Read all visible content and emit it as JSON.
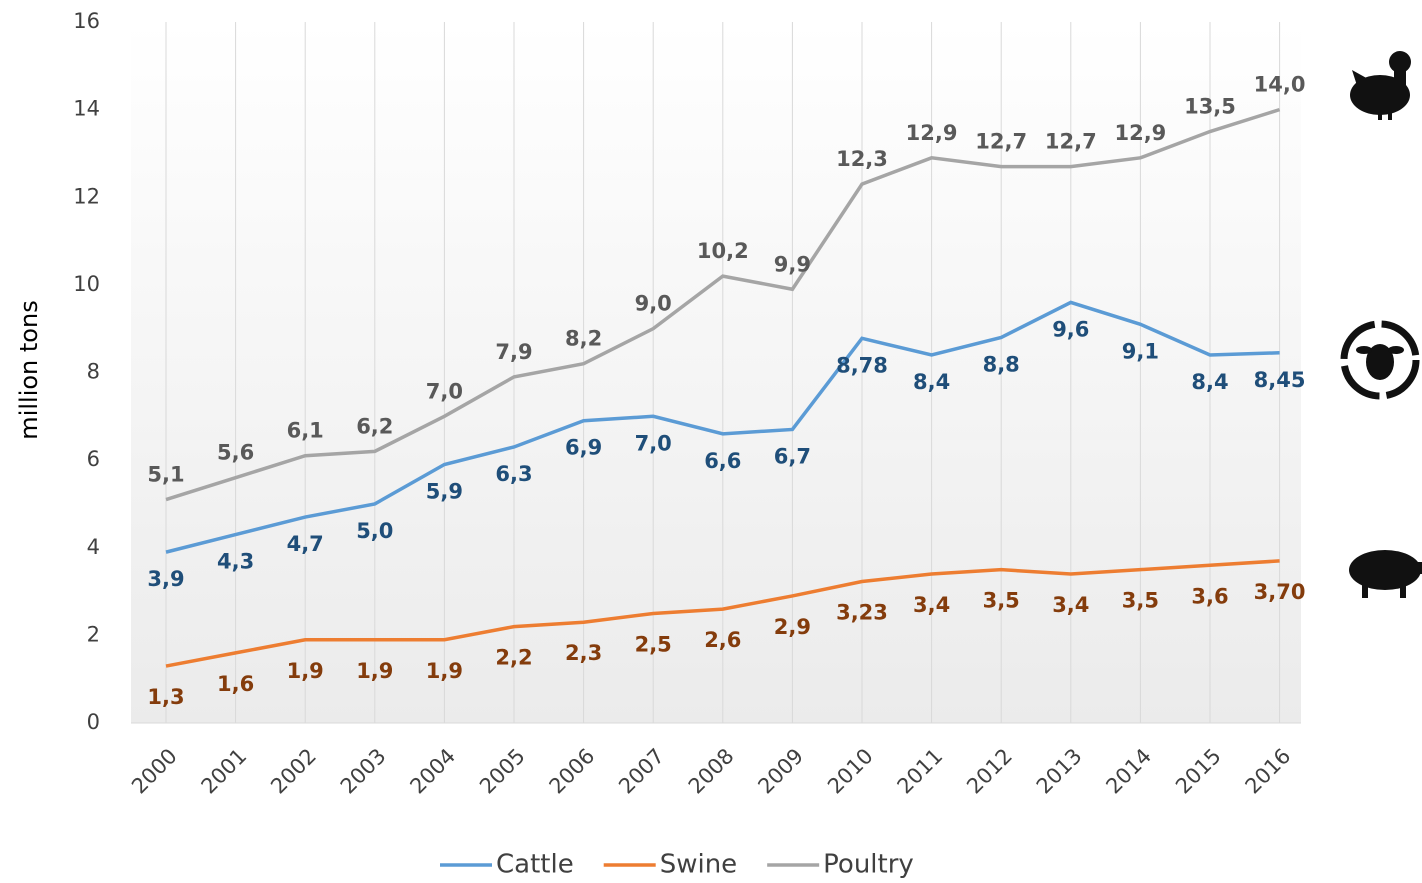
{
  "chart_data": {
    "type": "line",
    "y_label": "million tons",
    "categories": [
      "2000",
      "2001",
      "2002",
      "2003",
      "2004",
      "2005",
      "2006",
      "2007",
      "2008",
      "2009",
      "2010",
      "2011",
      "2012",
      "2013",
      "2014",
      "2015",
      "2016"
    ],
    "series": [
      {
        "name": "Cattle",
        "color": "#5b9bd5",
        "values": [
          3.9,
          4.3,
          4.7,
          5.0,
          5.9,
          6.3,
          6.9,
          7.0,
          6.6,
          6.7,
          8.78,
          8.4,
          8.8,
          9.6,
          9.1,
          8.4,
          8.45
        ],
        "value_labels": [
          "3,9",
          "4,3",
          "4,7",
          "5,0",
          "5,9",
          "6,3",
          "6,9",
          "7,0",
          "6,6",
          "6,7",
          "8,78",
          "8,4",
          "8,8",
          "9,6",
          "9,1",
          "8,4",
          "8,45"
        ]
      },
      {
        "name": "Swine",
        "color": "#ed7d31",
        "values": [
          1.3,
          1.6,
          1.9,
          1.9,
          1.9,
          2.2,
          2.3,
          2.5,
          2.6,
          2.9,
          3.23,
          3.4,
          3.5,
          3.4,
          3.5,
          3.6,
          3.7
        ],
        "value_labels": [
          "1,3",
          "1,6",
          "1,9",
          "1,9",
          "1,9",
          "2,2",
          "2,3",
          "2,5",
          "2,6",
          "2,9",
          "3,23",
          "3,4",
          "3,5",
          "3,4",
          "3,5",
          "3,6",
          "3,70"
        ]
      },
      {
        "name": "Poultry",
        "color": "#a5a5a5",
        "values": [
          5.1,
          5.6,
          6.1,
          6.2,
          7.0,
          7.9,
          8.2,
          9.0,
          10.2,
          9.9,
          12.3,
          12.9,
          12.7,
          12.7,
          12.9,
          13.5,
          14.0
        ],
        "value_labels": [
          "5,1",
          "5,6",
          "6,1",
          "6,2",
          "7,0",
          "7,9",
          "8,2",
          "9,0",
          "10,2",
          "9,9",
          "12,3",
          "12,9",
          "12,7",
          "12,7",
          "12,9",
          "13,5",
          "14,0"
        ]
      }
    ],
    "ylim": [
      0,
      16
    ],
    "yticks": [
      0,
      2,
      4,
      6,
      8,
      10,
      12,
      14,
      16
    ],
    "legend": "bottom"
  }
}
